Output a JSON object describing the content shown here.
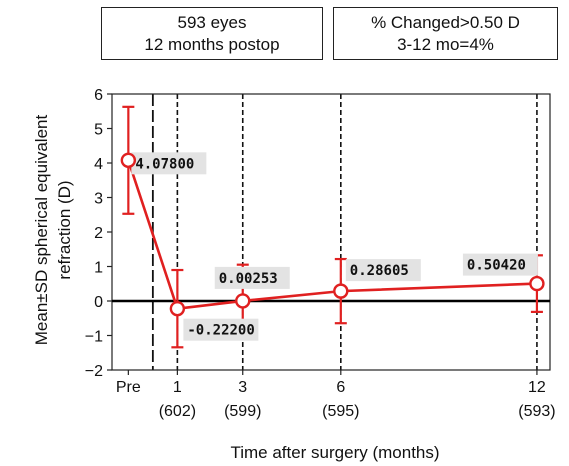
{
  "info_boxes": [
    {
      "line1": "593 eyes",
      "line2": "12 months postop"
    },
    {
      "line1": "% Changed>0.50 D",
      "line2": "3-12 mo=4%"
    }
  ],
  "chart_data": {
    "type": "line",
    "xlabel": "Time after surgery (months)",
    "ylabel_line1": "Mean±SD spherical equivalent",
    "ylabel_line2": "refraction (D)",
    "ylim": [
      -2,
      6
    ],
    "yticks": [
      -2,
      -1,
      0,
      1,
      2,
      3,
      4,
      5,
      6
    ],
    "xlim": [
      -1,
      12.4
    ],
    "grid": "vertical dashed lines at each time point; bold baseline at y=0",
    "legend": "none",
    "colors": {
      "series": "#e02020",
      "label_bg": "#e3e3e3",
      "grid": "#111111"
    },
    "x_ticks": [
      {
        "x": -0.5,
        "label": "Pre",
        "n": ""
      },
      {
        "x": 1,
        "label": "1",
        "n": "(602)"
      },
      {
        "x": 3,
        "label": "3",
        "n": "(599)"
      },
      {
        "x": 6,
        "label": "6",
        "n": "(595)"
      },
      {
        "x": 12,
        "label": "12",
        "n": "(593)"
      }
    ],
    "separator_x": 0.25,
    "series": [
      {
        "points": [
          {
            "x": -0.5,
            "mean": 4.078,
            "sd": 1.55,
            "label": "4.07800"
          },
          {
            "x": 1,
            "mean": -0.222,
            "sd": 1.12,
            "label": "-0.22200"
          },
          {
            "x": 3,
            "mean": 0.00253,
            "sd": 1.05,
            "label": "0.00253"
          },
          {
            "x": 6,
            "mean": 0.28605,
            "sd": 0.93,
            "label": "0.28605"
          },
          {
            "x": 12,
            "mean": 0.5042,
            "sd": 0.82,
            "label": "0.50420"
          }
        ]
      }
    ]
  }
}
